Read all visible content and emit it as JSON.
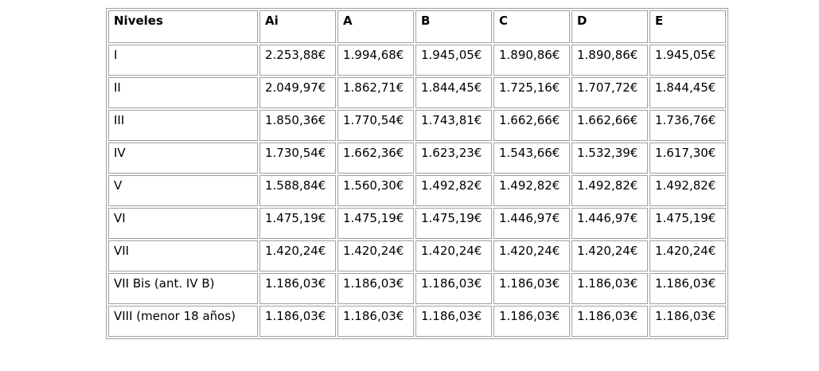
{
  "table": {
    "columns": [
      "Niveles",
      "Ai",
      "A",
      "B",
      "C",
      "D",
      "E"
    ],
    "rows": [
      {
        "level": "I",
        "values": [
          "2.253,88€",
          "1.994,68€",
          "1.945,05€",
          "1.890,86€",
          "1.890,86€",
          "1.945,05€"
        ]
      },
      {
        "level": "II",
        "values": [
          "2.049,97€",
          "1.862,71€",
          "1.844,45€",
          "1.725,16€",
          "1.707,72€",
          "1.844,45€"
        ]
      },
      {
        "level": "III",
        "values": [
          "1.850,36€",
          "1.770,54€",
          "1.743,81€",
          "1.662,66€",
          "1.662,66€",
          "1.736,76€"
        ]
      },
      {
        "level": "IV",
        "values": [
          "1.730,54€",
          "1.662,36€",
          "1.623,23€",
          "1.543,66€",
          "1.532,39€",
          "1.617,30€"
        ]
      },
      {
        "level": "V",
        "values": [
          "1.588,84€",
          "1.560,30€",
          "1.492,82€",
          "1.492,82€",
          "1.492,82€",
          "1.492,82€"
        ]
      },
      {
        "level": "VI",
        "values": [
          "1.475,19€",
          "1.475,19€",
          "1.475,19€",
          "1.446,97€",
          "1.446,97€",
          "1.475,19€"
        ]
      },
      {
        "level": "VII",
        "values": [
          "1.420,24€",
          "1.420,24€",
          "1.420,24€",
          "1.420,24€",
          "1.420,24€",
          "1.420,24€"
        ]
      },
      {
        "level": "VII Bis (ant. IV B)",
        "values": [
          "1.186,03€",
          "1.186,03€",
          "1.186,03€",
          "1.186,03€",
          "1.186,03€",
          "1.186,03€"
        ]
      },
      {
        "level": "VIII (menor 18 años)",
        "values": [
          "1.186,03€",
          "1.186,03€",
          "1.186,03€",
          "1.186,03€",
          "1.186,03€",
          "1.186,03€"
        ]
      }
    ]
  },
  "layout": {
    "level_column_width": 188,
    "value_column_width": 96
  },
  "colors": {
    "border": "#a0a0a0",
    "text": "#000000",
    "background": "#ffffff"
  }
}
